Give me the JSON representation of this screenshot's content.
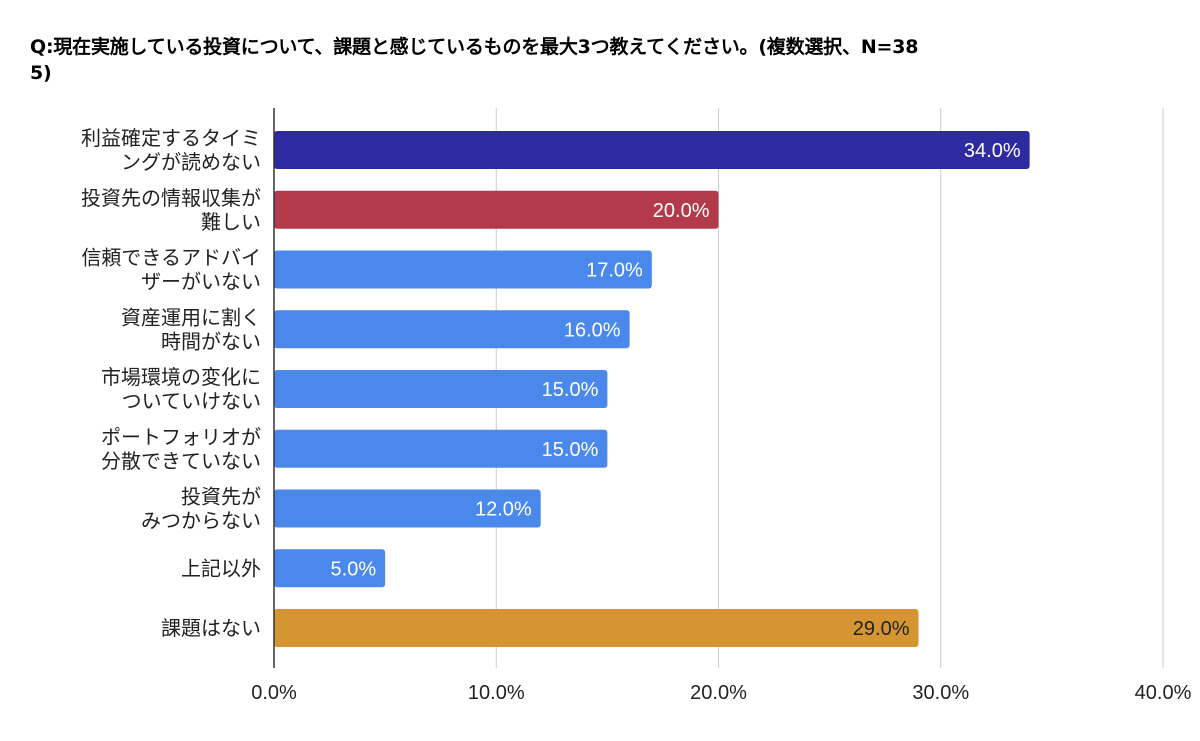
{
  "chart_data": {
    "type": "bar",
    "orientation": "horizontal",
    "title": "Q:現在実施している投資について、課題と感じているものを最大3つ教えてください。(複数選択、N=385)",
    "title_lines": [
      "Q:現在実施している投資について、課題と感じているものを最大3つ教えてください。(複数選択、N=38",
      "5)"
    ],
    "categories": [
      [
        "利益確定するタイミ",
        "ングが読めない"
      ],
      [
        "投資先の情報収集が",
        "難しい"
      ],
      [
        "信頼できるアドバイ",
        "ザーがいない"
      ],
      [
        "資産運用に割く",
        "時間がない"
      ],
      [
        "市場環境の変化に",
        "ついていけない"
      ],
      [
        "ポートフォリオが",
        "分散できていない"
      ],
      [
        "投資先が",
        "みつからない"
      ],
      [
        "上記以外"
      ],
      [
        "課題はない"
      ]
    ],
    "values": [
      34.0,
      20.0,
      17.0,
      16.0,
      15.0,
      15.0,
      12.0,
      5.0,
      29.0
    ],
    "value_labels": [
      "34.0%",
      "20.0%",
      "17.0%",
      "16.0%",
      "15.0%",
      "15.0%",
      "12.0%",
      "5.0%",
      "29.0%"
    ],
    "bar_colors": [
      "#2e2a9f",
      "#b33a4a",
      "#4a88ec",
      "#4a88ec",
      "#4a88ec",
      "#4a88ec",
      "#4a88ec",
      "#4a88ec",
      "#d69533"
    ],
    "label_colors": [
      "#ffffff",
      "#ffffff",
      "#ffffff",
      "#ffffff",
      "#ffffff",
      "#ffffff",
      "#ffffff",
      "#ffffff",
      "#222222"
    ],
    "xlim": [
      0,
      40
    ],
    "xticks": [
      0,
      10,
      20,
      30,
      40
    ],
    "xtick_labels": [
      "0.0%",
      "10.0%",
      "20.0%",
      "30.0%",
      "40.0%"
    ],
    "grid": true,
    "xlabel": "",
    "ylabel": ""
  }
}
